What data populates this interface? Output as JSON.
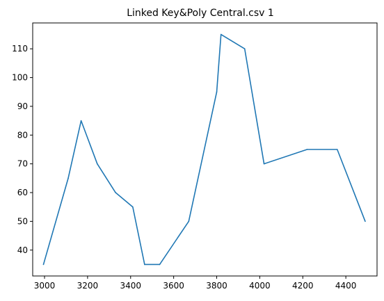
{
  "chart_data": {
    "type": "line",
    "title": "Linked Key&Poly Central.csv 1",
    "xlabel": "",
    "ylabel": "",
    "xlim": [
      2945,
      4545
    ],
    "ylim": [
      31,
      119
    ],
    "x_ticks": [
      3000,
      3200,
      3400,
      3600,
      3800,
      4000,
      4200,
      4400
    ],
    "y_ticks": [
      40,
      50,
      60,
      70,
      80,
      90,
      100,
      110
    ],
    "grid": false,
    "series": [
      {
        "color": "#1f77b4",
        "x": [
          2995,
          3110,
          3170,
          3245,
          3330,
          3410,
          3465,
          3535,
          3670,
          3800,
          3820,
          3930,
          4020,
          4220,
          4360,
          4490
        ],
        "y": [
          35,
          65,
          85,
          70,
          60,
          55,
          35,
          35,
          50,
          95,
          115,
          110,
          70,
          75,
          75,
          50
        ]
      }
    ]
  }
}
